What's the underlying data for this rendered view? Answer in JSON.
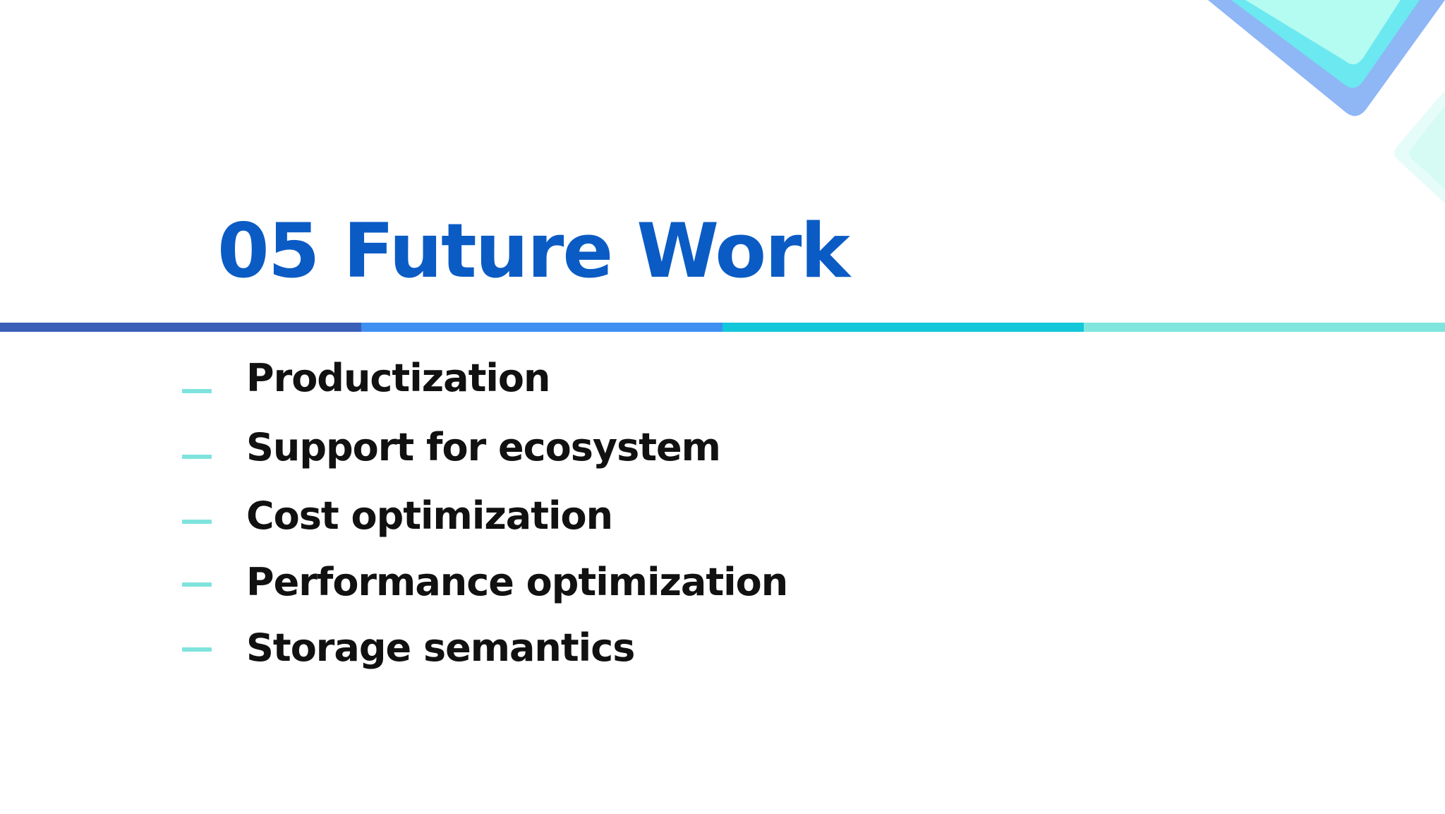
{
  "slide": {
    "title": "05 Future Work",
    "bullets": [
      {
        "text": "Productization"
      },
      {
        "text": "Support for ecosystem"
      },
      {
        "text": "Cost optimization"
      },
      {
        "text": "Performance optimization"
      },
      {
        "text": "Storage semantics"
      }
    ]
  },
  "colors": {
    "title": "#0b5bc4",
    "bullet_dash": "#7fe3dd",
    "bullet_text": "#111111",
    "rule_segments": [
      "#3a5fb8",
      "#3d8ff2",
      "#12c7d9",
      "#7fe6dd"
    ],
    "corner_outer": "#8fb6f5",
    "corner_mid": "#6ce8f0",
    "corner_inner": "#b4fbf2",
    "corner_side": "#d6fbf5"
  }
}
